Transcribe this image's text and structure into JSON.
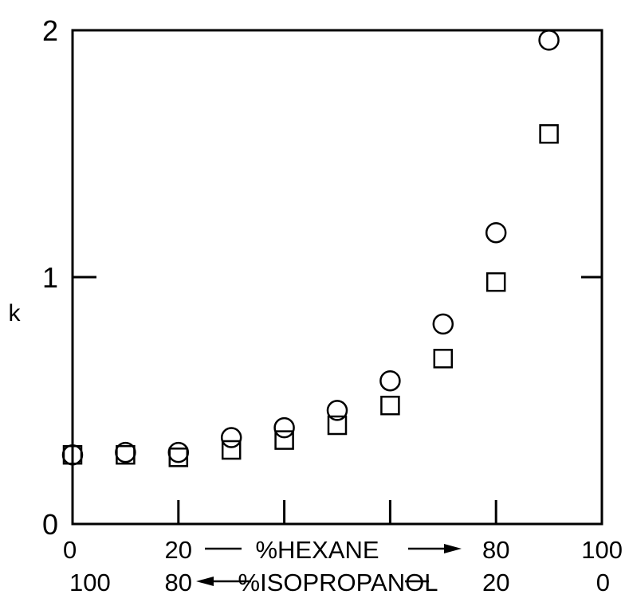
{
  "chart_data": {
    "type": "scatter",
    "title": "",
    "ylabel": "k",
    "xlabel": "%HEXANE",
    "xlabel_secondary": "%ISOPROPANOL",
    "xlim": [
      0,
      100
    ],
    "ylim": [
      0,
      2
    ],
    "grid": false,
    "x_ticks": [
      {
        "label": "0",
        "value": 0
      },
      {
        "label": "20",
        "value": 20
      },
      {
        "label": "80",
        "value": 80
      },
      {
        "label": "100",
        "value": 100
      }
    ],
    "x_ticks_secondary": [
      {
        "label": "100",
        "value": 0
      },
      {
        "label": "80",
        "value": 20
      },
      {
        "label": "20",
        "value": 80
      },
      {
        "label": "0",
        "value": 100
      }
    ],
    "y_ticks": [
      {
        "label": "0",
        "value": 0
      },
      {
        "label": "1",
        "value": 1
      },
      {
        "label": "2",
        "value": 2
      }
    ],
    "x": [
      0,
      10,
      20,
      30,
      40,
      50,
      60,
      70,
      80,
      90
    ],
    "series": [
      {
        "marker": "circle",
        "values": [
          0.28,
          0.29,
          0.29,
          0.35,
          0.39,
          0.46,
          0.58,
          0.81,
          1.18,
          1.96
        ]
      },
      {
        "marker": "square",
        "values": [
          0.28,
          0.28,
          0.27,
          0.3,
          0.34,
          0.4,
          0.48,
          0.67,
          0.98,
          1.58
        ]
      }
    ]
  }
}
